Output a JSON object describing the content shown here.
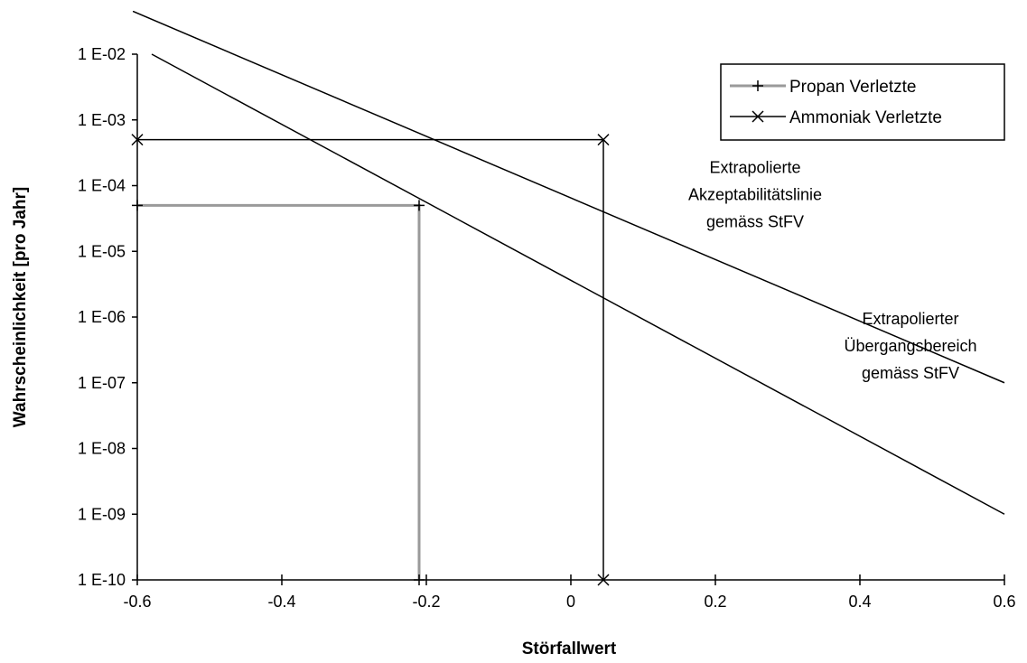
{
  "chart_data": {
    "type": "line",
    "title": "",
    "xlabel": "Störfallwert",
    "ylabel": "Wahrscheinlichkeit [pro Jahr]",
    "x_range": [
      -0.6,
      0.6
    ],
    "y_range": [
      1e-10,
      0.01
    ],
    "y_scale": "log",
    "grid": false,
    "x_ticks": [
      -0.6,
      -0.4,
      -0.2,
      0,
      0.2,
      0.4,
      0.6
    ],
    "x_tick_labels": [
      "-0.6",
      "-0.4",
      "-0.2",
      "0",
      "0.2",
      "0.4",
      "0.6"
    ],
    "y_ticks": [
      1e-10,
      1e-09,
      1e-08,
      1e-07,
      1e-06,
      1e-05,
      0.0001,
      0.001,
      0.01
    ],
    "y_tick_labels": [
      "1 E-10",
      "1 E-09",
      "1 E-08",
      "1 E-07",
      "1 E-06",
      "1 E-05",
      "1 E-04",
      "1 E-03",
      "1 E-02"
    ],
    "legend_position": "top-right",
    "series": [
      {
        "name": "Propan Verletzte",
        "marker": "plus",
        "color": "#9a9a9a",
        "points": [
          [
            -0.6,
            5e-05
          ],
          [
            -0.21,
            5e-05
          ],
          [
            -0.21,
            1e-10
          ]
        ]
      },
      {
        "name": "Ammoniak Verletzte",
        "marker": "x",
        "color": "#000000",
        "points": [
          [
            -0.6,
            0.0005
          ],
          [
            0.045,
            0.0005
          ],
          [
            0.045,
            1e-10
          ]
        ]
      }
    ],
    "reference_lines": [
      {
        "points": [
          [
            -0.68,
            0.1
          ],
          [
            0.6,
            1e-07
          ]
        ]
      },
      {
        "points": [
          [
            -0.58,
            0.01
          ],
          [
            0.6,
            1e-09
          ]
        ]
      }
    ],
    "annotations": [
      {
        "lines": [
          "Extrapolierte",
          "Akzeptabilitätslinie",
          "gemäss StFV"
        ],
        "x": 0.255,
        "y": 6e-05
      },
      {
        "lines": [
          "Extrapolierter",
          "Übergangsbereich",
          "gemäss StFV"
        ],
        "x": 0.47,
        "y": 3e-07
      }
    ]
  }
}
